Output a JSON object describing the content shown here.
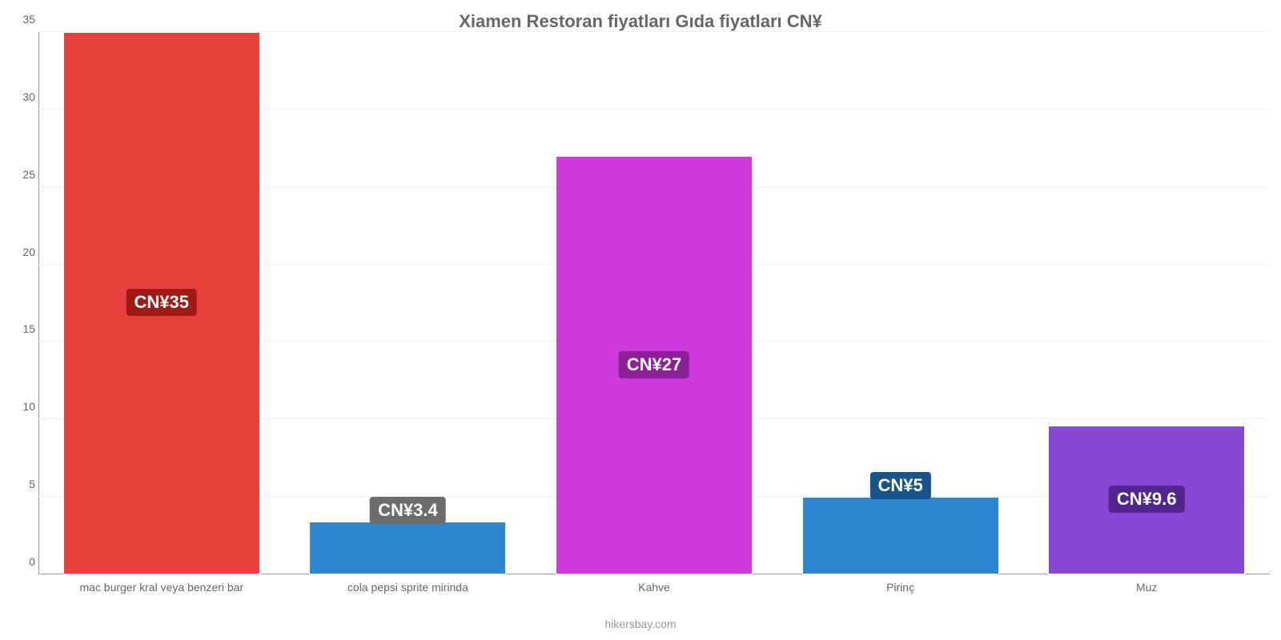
{
  "chart": {
    "type": "bar",
    "title": "Xiamen Restoran fiyatları Gıda fiyatları CN¥",
    "title_fontsize": 22,
    "title_color": "#666666",
    "footer": "hikersbay.com",
    "footer_color": "#999999",
    "background_color": "#ffffff",
    "grid_color": "#f1f1f1",
    "axis_color": "#999999",
    "label_fontsize": 14,
    "label_color": "#666666",
    "value_badge_fontsize": 22,
    "value_badge_text_color": "#ffffff",
    "ylim": [
      0,
      35
    ],
    "ytick_step": 5,
    "bar_width": 0.8,
    "categories": [
      "mac burger kral veya benzeri bar",
      "cola pepsi sprite mirinda",
      "Kahve",
      "Pirinç",
      "Muz"
    ],
    "values": [
      35,
      3.4,
      27,
      5,
      9.6
    ],
    "value_labels": [
      "CN¥35",
      "CN¥3.4",
      "CN¥27",
      "CN¥5",
      "CN¥9.6"
    ],
    "bar_colors": [
      "#e8403c",
      "#2f86d0",
      "#cf3add",
      "#2f86d0",
      "#8747d4"
    ],
    "badge_colors": [
      "#a01b17",
      "#6c6c6c",
      "#8d1f99",
      "#16548a",
      "#53248e"
    ]
  }
}
